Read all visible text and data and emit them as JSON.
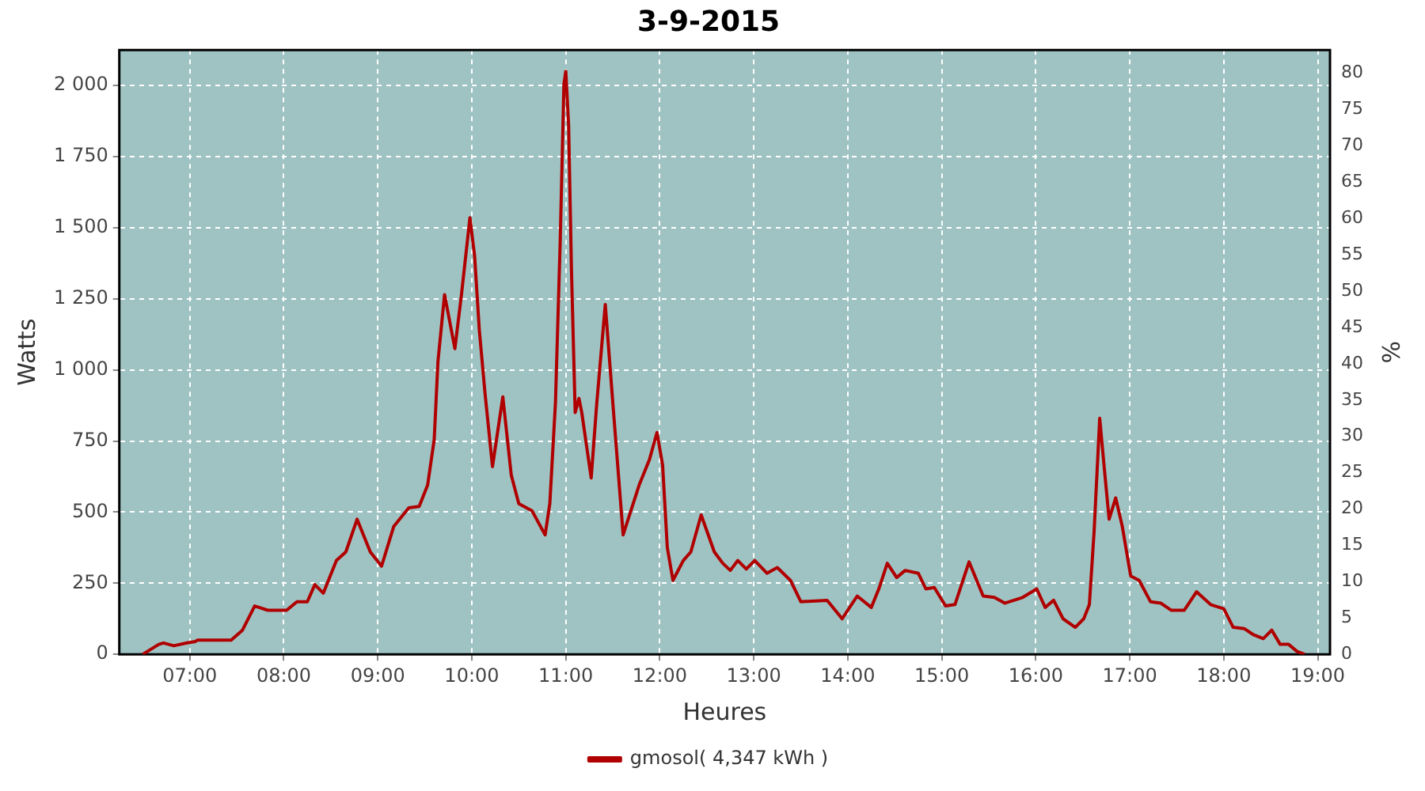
{
  "chart_data": {
    "type": "line",
    "title": "3-9-2015",
    "xlabel": "Heures",
    "ylabel": "Watts",
    "y2label": "%",
    "xlim": [
      6.25,
      19.13
    ],
    "xticks": [
      {
        "value": 7,
        "label": "07:00"
      },
      {
        "value": 8,
        "label": "08:00"
      },
      {
        "value": 9,
        "label": "09:00"
      },
      {
        "value": 10,
        "label": "10:00"
      },
      {
        "value": 11,
        "label": "11:00"
      },
      {
        "value": 12,
        "label": "12:00"
      },
      {
        "value": 13,
        "label": "13:00"
      },
      {
        "value": 14,
        "label": "14:00"
      },
      {
        "value": 15,
        "label": "15:00"
      },
      {
        "value": 16,
        "label": "16:00"
      },
      {
        "value": 17,
        "label": "17:00"
      },
      {
        "value": 18,
        "label": "18:00"
      },
      {
        "value": 19,
        "label": "19:00"
      }
    ],
    "ylim": [
      0,
      2125
    ],
    "yticks": [
      0,
      250,
      500,
      750,
      {
        "value": 1000,
        "label": "1 000"
      },
      {
        "value": 1250,
        "label": "1 250"
      },
      {
        "value": 1500,
        "label": "1 500"
      },
      {
        "value": 1750,
        "label": "1 750"
      },
      {
        "value": 2000,
        "label": "2 000"
      }
    ],
    "y2lim": [
      0,
      83.2
    ],
    "y2ticks": [
      0,
      5,
      10,
      15,
      20,
      25,
      30,
      35,
      40,
      45,
      50,
      55,
      60,
      65,
      70,
      75,
      80
    ],
    "grid": true,
    "legend": "bottom",
    "marker": "none",
    "line_style": "solid",
    "series": [
      {
        "name": "gmosol( 4,347 kWh )",
        "color": "#b00000",
        "x": [
          6.5,
          6.67,
          6.72,
          6.83,
          6.97,
          7.06,
          7.08,
          7.44,
          7.56,
          7.69,
          7.83,
          8.03,
          8.14,
          8.25,
          8.33,
          8.42,
          8.56,
          8.66,
          8.78,
          8.92,
          9.04,
          9.17,
          9.33,
          9.44,
          9.53,
          9.6,
          9.64,
          9.71,
          9.82,
          9.89,
          9.98,
          10.03,
          10.08,
          10.14,
          10.22,
          10.33,
          10.42,
          10.5,
          10.64,
          10.78,
          10.83,
          10.89,
          10.94,
          10.98,
          11.0,
          11.03,
          11.06,
          11.1,
          11.14,
          11.17,
          11.27,
          11.33,
          11.42,
          11.5,
          11.61,
          11.78,
          11.89,
          11.97,
          12.03,
          12.08,
          12.14,
          12.25,
          12.33,
          12.44,
          12.58,
          12.67,
          12.75,
          12.83,
          12.92,
          13.01,
          13.14,
          13.25,
          13.39,
          13.5,
          13.78,
          13.94,
          14.1,
          14.25,
          14.33,
          14.42,
          14.52,
          14.61,
          14.75,
          14.83,
          14.92,
          15.04,
          15.14,
          15.29,
          15.44,
          15.56,
          15.67,
          15.86,
          16.01,
          16.1,
          16.19,
          16.29,
          16.42,
          16.51,
          16.57,
          16.62,
          16.68,
          16.73,
          16.78,
          16.85,
          16.92,
          17.01,
          17.1,
          17.22,
          17.33,
          17.44,
          17.58,
          17.71,
          17.86,
          18.0,
          18.1,
          18.22,
          18.31,
          18.42,
          18.51,
          18.6,
          18.69,
          18.78,
          18.86
        ],
        "values": [
          0,
          35,
          40,
          30,
          40,
          45,
          50,
          50,
          85,
          170,
          155,
          155,
          185,
          185,
          245,
          215,
          330,
          360,
          475,
          360,
          310,
          450,
          515,
          520,
          595,
          755,
          1030,
          1265,
          1075,
          1265,
          1535,
          1400,
          1140,
          920,
          660,
          905,
          630,
          530,
          505,
          420,
          530,
          885,
          1445,
          2005,
          2050,
          1860,
          1355,
          850,
          900,
          850,
          620,
          885,
          1230,
          885,
          420,
          595,
          685,
          780,
          665,
          375,
          260,
          330,
          360,
          490,
          360,
          320,
          295,
          330,
          300,
          330,
          285,
          305,
          260,
          185,
          190,
          125,
          205,
          165,
          230,
          320,
          270,
          295,
          285,
          230,
          235,
          170,
          175,
          325,
          205,
          200,
          180,
          200,
          230,
          165,
          190,
          125,
          95,
          125,
          175,
          430,
          830,
          650,
          475,
          550,
          450,
          275,
          260,
          185,
          180,
          155,
          155,
          220,
          175,
          160,
          95,
          90,
          70,
          55,
          85,
          35,
          35,
          10,
          0
        ]
      }
    ]
  }
}
